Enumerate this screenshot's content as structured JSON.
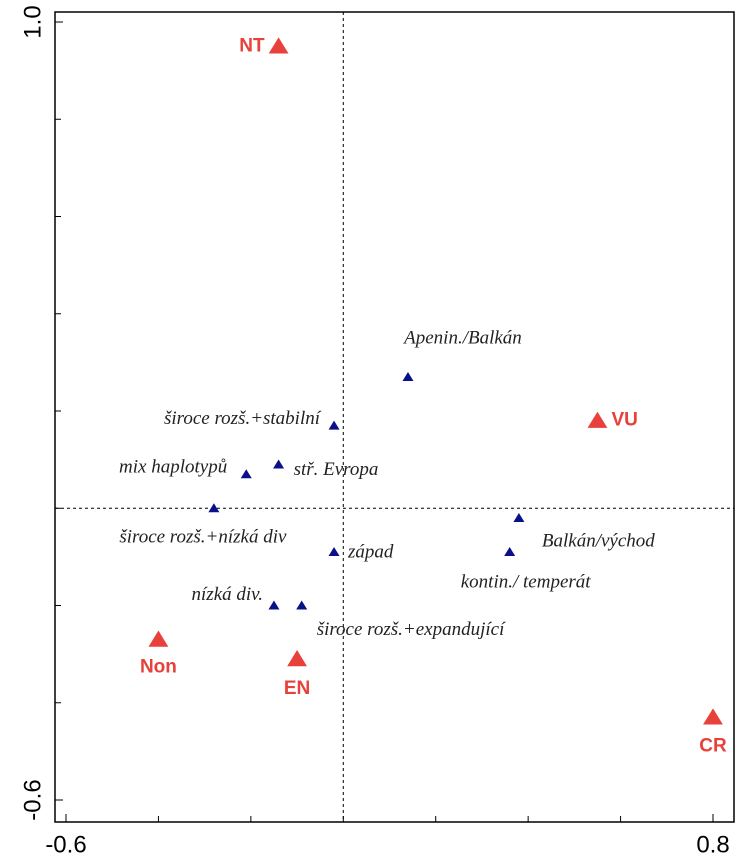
{
  "chart_data": {
    "type": "scatter",
    "series": [
      {
        "color": "#e8403a",
        "marker_size": 9,
        "labels": [
          "NT",
          "VU",
          "Non",
          "EN",
          "CR"
        ],
        "x": [
          -0.14,
          0.55,
          -0.4,
          -0.1,
          0.8
        ],
        "values": [
          0.95,
          0.18,
          -0.27,
          -0.31,
          -0.43
        ]
      },
      {
        "color": "#0a0f8a",
        "marker_size": 5,
        "labels": [
          "Apenin./Balkán",
          "široce rozš.+stabilní",
          "mix haplotypů",
          "stř. Evropa",
          "široce rozš.+nízká div",
          "západ",
          "Balkán/východ",
          "kontin./ temperát",
          "nízká div.",
          "široce rozš.+expandující"
        ],
        "x": [
          0.14,
          -0.02,
          -0.21,
          -0.14,
          -0.28,
          -0.02,
          0.38,
          0.36,
          -0.15,
          -0.09
        ],
        "values": [
          0.27,
          0.17,
          0.07,
          0.09,
          0.0,
          -0.09,
          -0.02,
          -0.09,
          -0.2,
          -0.2
        ]
      }
    ],
    "xlim": [
      -0.6,
      0.8
    ],
    "ylim": [
      -0.6,
      1.0
    ],
    "xticks": [
      -0.6,
      0.8
    ],
    "yticks": [
      {
        "value": 1.0,
        "label": "1.0"
      },
      -0.6
    ],
    "xminor_ticks": [
      -0.4,
      -0.2,
      0,
      0.2,
      0.4,
      0.6
    ],
    "yminor_ticks": [
      0.8,
      0.6,
      0.4,
      0.2,
      0,
      -0.2,
      -0.4
    ]
  }
}
